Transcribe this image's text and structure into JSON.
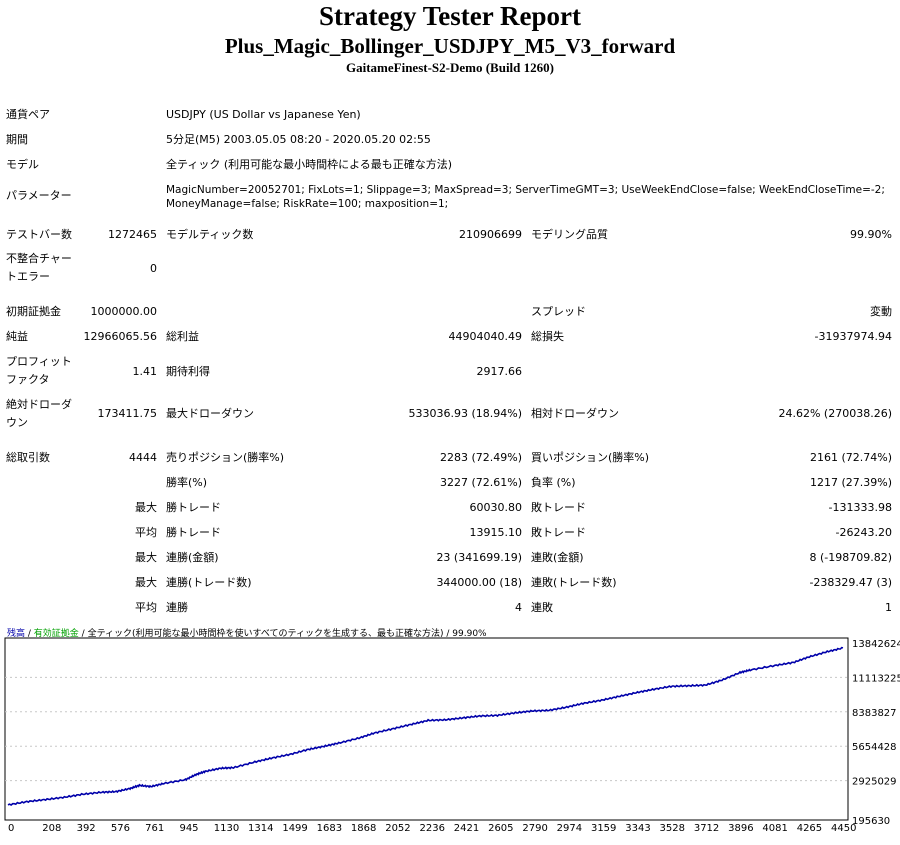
{
  "header": {
    "title": "Strategy Tester Report",
    "subtitle": "Plus_Magic_Bollinger_USDJPY_M5_V3_forward",
    "server": "GaitameFinest-S2-Demo (Build 1260)"
  },
  "settings": {
    "symbol_label": "通貨ペア",
    "symbol_value": "USDJPY (US Dollar vs Japanese Yen)",
    "period_label": "期間",
    "period_value": "5分足(M5) 2003.05.05 08:20 - 2020.05.20 02:55",
    "model_label": "モデル",
    "model_value": "全ティック (利用可能な最小時間枠による最も正確な方法)",
    "params_label": "パラメーター",
    "params_line1": "MagicNumber=20052701; FixLots=1; Slippage=3; MaxSpread=3; ServerTimeGMT=3; UseWeekEndClose=false; WeekEndCloseTime=-2;",
    "params_line2": "MoneyManage=false; RiskRate=100; maxposition=1;"
  },
  "stats": {
    "bars_label": "テストバー数",
    "bars_value": "1272465",
    "ticks_label": "モデルティック数",
    "ticks_value": "210906699",
    "quality_label": "モデリング品質",
    "quality_value": "99.90%",
    "mismatch_label_1": "不整合チャー",
    "mismatch_label_2": "トエラー",
    "mismatch_value": "0",
    "deposit_label": "初期証拠金",
    "deposit_value": "1000000.00",
    "spread_label": "スプレッド",
    "spread_value": "変動",
    "net_label": "純益",
    "net_value": "12966065.56",
    "gross_profit_label": "総利益",
    "gross_profit_value": "44904040.49",
    "gross_loss_label": "総損失",
    "gross_loss_value": "-31937974.94",
    "pf_label_1": "プロフィット",
    "pf_label_2": "ファクタ",
    "pf_value": "1.41",
    "payoff_label": "期待利得",
    "payoff_value": "2917.66",
    "abs_dd_label_1": "絶対ドローダ",
    "abs_dd_label_2": "ウン",
    "abs_dd_value": "173411.75",
    "max_dd_label": "最大ドローダウン",
    "max_dd_value": "533036.93 (18.94%)",
    "rel_dd_label": "相対ドローダウン",
    "rel_dd_value": "24.62% (270038.26)",
    "trades_label": "総取引数",
    "trades_value": "4444",
    "short_label": "売りポジション(勝率%)",
    "short_value": "2283 (72.49%)",
    "long_label": "買いポジション(勝率%)",
    "long_value": "2161 (72.74%)",
    "win_rate_label": "勝率(%)",
    "win_rate_value": "3227 (72.61%)",
    "loss_rate_label": "負率 (%)",
    "loss_rate_value": "1217 (27.39%)",
    "max_label": "最大",
    "largest_win_label": "勝トレード",
    "largest_win_value": "60030.80",
    "largest_loss_label": "敗トレード",
    "largest_loss_value": "-131333.98",
    "avg_label": "平均",
    "avg_win_label": "勝トレード",
    "avg_win_value": "13915.10",
    "avg_loss_label": "敗トレード",
    "avg_loss_value": "-26243.20",
    "max2_label": "最大",
    "cons_wins_money_label": "連勝(金額)",
    "cons_wins_money_value": "23 (341699.19)",
    "cons_losses_money_label": "連敗(金額)",
    "cons_losses_money_value": "8 (-198709.82)",
    "max3_label": "最大",
    "cons_profit_label": "連勝(トレード数)",
    "cons_profit_value": "344000.00 (18)",
    "cons_loss_label": "連敗(トレード数)",
    "cons_loss_value": "-238329.47 (3)",
    "avg2_label": "平均",
    "avg_cons_wins_label": "連勝",
    "avg_cons_wins_value": "4",
    "avg_cons_losses_label": "連敗",
    "avg_cons_losses_value": "1"
  },
  "chart_legend": {
    "balance": "残高",
    "sep1": " / ",
    "margin": "有効証拠金",
    "sep2": " / ",
    "model": "全ティック(利用可能な最小時間枠を使いすべてのティックを生成する、最も正確な方法)",
    "quality": " / 99.90%"
  },
  "chart_data": {
    "type": "line",
    "x_ticks": [
      "0",
      "208",
      "392",
      "576",
      "761",
      "945",
      "1130",
      "1314",
      "1499",
      "1683",
      "1868",
      "2052",
      "2236",
      "2421",
      "2605",
      "2790",
      "2974",
      "3159",
      "3343",
      "3528",
      "3712",
      "3896",
      "4081",
      "4265",
      "4450"
    ],
    "y_ticks": [
      "13842624",
      "11113225",
      "8383827",
      "5654428",
      "2925029",
      "195630"
    ],
    "xlim": [
      0,
      4444
    ],
    "ylim": [
      195630,
      13842624
    ],
    "colors": {
      "balance": "#0000aa",
      "margin": "#00a000"
    },
    "series": [
      {
        "name": "残高",
        "x": [
          0,
          100,
          200,
          300,
          400,
          500,
          576,
          650,
          700,
          761,
          830,
          945,
          1000,
          1050,
          1130,
          1200,
          1314,
          1400,
          1499,
          1600,
          1683,
          1760,
          1868,
          1950,
          2052,
          2150,
          2236,
          2330,
          2421,
          2510,
          2605,
          2700,
          2790,
          2880,
          2974,
          3060,
          3159,
          3250,
          3343,
          3430,
          3528,
          3620,
          3712,
          3800,
          3896,
          3950,
          4081,
          4180,
          4265,
          4360,
          4444
        ],
        "y": [
          1000000,
          1250000,
          1420000,
          1600000,
          1850000,
          2000000,
          2050000,
          2300000,
          2550000,
          2450000,
          2700000,
          3000000,
          3400000,
          3650000,
          3900000,
          3950000,
          4400000,
          4700000,
          5000000,
          5400000,
          5650000,
          5900000,
          6300000,
          6700000,
          7050000,
          7400000,
          7700000,
          7750000,
          7900000,
          8050000,
          8100000,
          8300000,
          8450000,
          8500000,
          8750000,
          9050000,
          9300000,
          9600000,
          9900000,
          10150000,
          10400000,
          10450000,
          10500000,
          10900000,
          11500000,
          11700000,
          12050000,
          12300000,
          12750000,
          13150000,
          13450000
        ]
      }
    ]
  }
}
